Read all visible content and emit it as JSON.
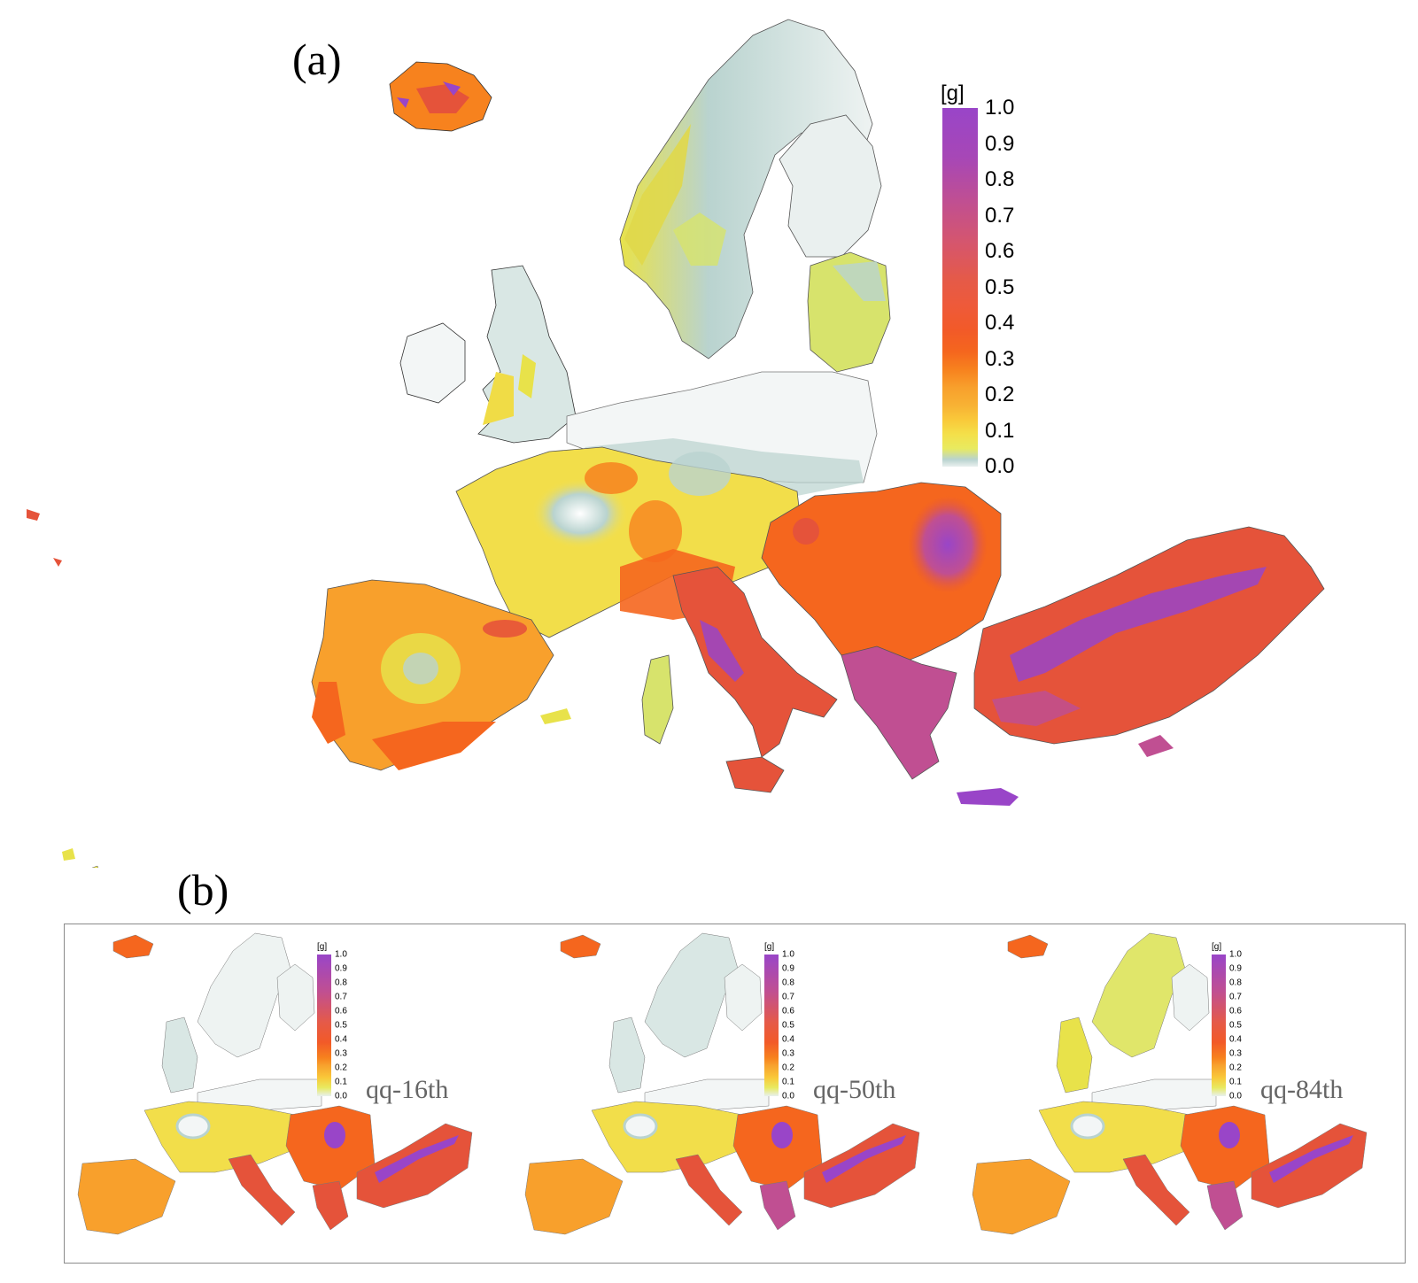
{
  "panel_a": {
    "label": "(a)",
    "legend": {
      "unit": "[g]",
      "ticks": [
        "1.0",
        "0.9",
        "0.8",
        "0.7",
        "0.6",
        "0.5",
        "0.4",
        "0.3",
        "0.2",
        "0.1",
        "0.0"
      ]
    }
  },
  "panel_b": {
    "label": "(b)",
    "maps": [
      {
        "caption": "qq-16th",
        "unit": "[g]",
        "ticks": [
          "1.0",
          "0.9",
          "0.8",
          "0.7",
          "0.6",
          "0.5",
          "0.4",
          "0.3",
          "0.2",
          "0.1",
          "0.0"
        ]
      },
      {
        "caption": "qq-50th",
        "unit": "[g]",
        "ticks": [
          "1.0",
          "0.9",
          "0.8",
          "0.7",
          "0.6",
          "0.5",
          "0.4",
          "0.3",
          "0.2",
          "0.1",
          "0.0"
        ]
      },
      {
        "caption": "qq-84th",
        "unit": "[g]",
        "ticks": [
          "1.0",
          "0.9",
          "0.8",
          "0.7",
          "0.6",
          "0.5",
          "0.4",
          "0.3",
          "0.2",
          "0.1",
          "0.0"
        ]
      }
    ]
  },
  "colors": {
    "low": "#e8f0ef",
    "teal": "#b9d3cf",
    "yellow": "#f4e04a",
    "orange": "#f8a02c",
    "red_orange": "#f5661e",
    "red": "#e5533a",
    "magenta": "#c04f92",
    "purple": "#9945c8"
  }
}
